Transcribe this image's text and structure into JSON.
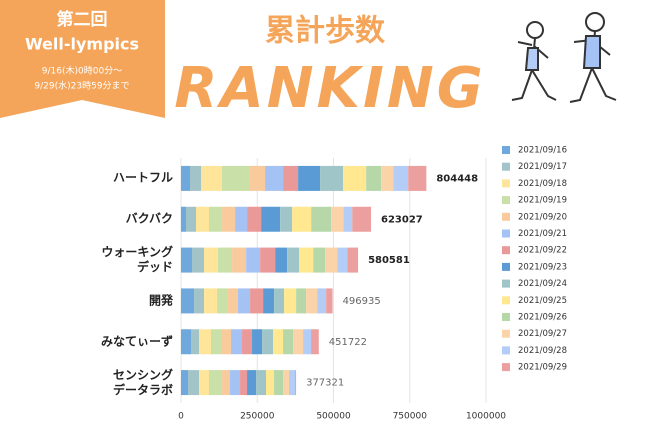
{
  "banner": {
    "edition": "第二回",
    "event": "Well-lympics",
    "period_start": "9/16(木)0時00分～",
    "period_end": "9/29(水)23時59分まで"
  },
  "chart_data": {
    "type": "stacked-barh",
    "title": "累計歩数",
    "subtitle": "RANKING",
    "categories": [
      "ハートフル",
      "バクバク",
      "ウォーキング\nデッド",
      "開発",
      "みなてぃーず",
      "センシング\nデータラボ"
    ],
    "totals": [
      804448,
      623027,
      580581,
      496935,
      451722,
      377321
    ],
    "xlim": [
      0,
      1000000
    ],
    "xticks": [
      0,
      250000,
      500000,
      750000,
      1000000
    ],
    "grid": true,
    "legend": "right",
    "series": [
      {
        "name": "2021/09/16",
        "color": "#6fa8dc",
        "values": [
          29500,
          16400,
          36100,
          42700,
          32800,
          23000
        ]
      },
      {
        "name": "2021/09/17",
        "color": "#a2c4c9",
        "values": [
          36100,
          32800,
          39400,
          32800,
          26200,
          36100
        ]
      },
      {
        "name": "2021/09/18",
        "color": "#ffe599",
        "values": [
          68900,
          42700,
          46000,
          42700,
          39400,
          32800
        ]
      },
      {
        "name": "2021/09/19",
        "color": "#c9e0a8",
        "values": [
          88600,
          42700,
          46000,
          32800,
          32800,
          42700
        ]
      },
      {
        "name": "2021/09/20",
        "color": "#f9cb9c",
        "values": [
          52500,
          42700,
          46000,
          36100,
          32800,
          26200
        ]
      },
      {
        "name": "2021/09/21",
        "color": "#a4c2f4",
        "values": [
          59100,
          39400,
          46000,
          39400,
          36100,
          32800
        ]
      },
      {
        "name": "2021/09/22",
        "color": "#ea9999",
        "values": [
          49200,
          46000,
          49200,
          42700,
          32800,
          22900
        ]
      },
      {
        "name": "2021/09/23",
        "color": "#5b9bd5",
        "values": [
          72200,
          62400,
          39400,
          36100,
          32800,
          29500
        ]
      },
      {
        "name": "2021/09/24",
        "color": "#9fc5c8",
        "values": [
          75500,
          39400,
          39400,
          32800,
          36100,
          32800
        ]
      },
      {
        "name": "2021/09/25",
        "color": "#ffe88f",
        "values": [
          75500,
          62400,
          46000,
          39400,
          32800,
          26200
        ]
      },
      {
        "name": "2021/09/26",
        "color": "#b6d7a8",
        "values": [
          49200,
          65700,
          39400,
          32800,
          32800,
          29500
        ]
      },
      {
        "name": "2021/09/27",
        "color": "#fbd3a8",
        "values": [
          39400,
          39400,
          39400,
          36100,
          32800,
          19700
        ]
      },
      {
        "name": "2021/09/28",
        "color": "#b4cdf6",
        "values": [
          49200,
          29500,
          32800,
          29500,
          26200,
          19700
        ]
      },
      {
        "name": "2021/09/29",
        "color": "#ec9f9f",
        "values": [
          59548,
          61527,
          35481,
          21035,
          25322,
          3421
        ]
      }
    ]
  }
}
